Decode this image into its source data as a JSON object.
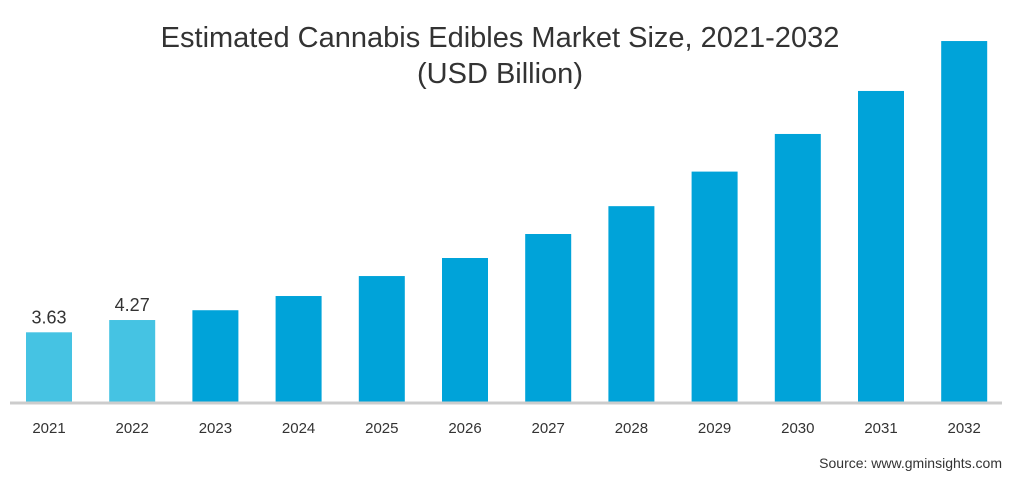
{
  "chart_data": {
    "type": "bar",
    "title": "Estimated Cannabis Edibles Market Size, 2021-2032",
    "subtitle": "(USD Billion)",
    "xlabel": "",
    "ylabel": "",
    "categories": [
      "2021",
      "2022",
      "2023",
      "2024",
      "2025",
      "2026",
      "2027",
      "2028",
      "2029",
      "2030",
      "2031",
      "2032"
    ],
    "values": [
      3.63,
      4.27,
      4.78,
      5.52,
      6.56,
      7.5,
      8.75,
      10.2,
      12.0,
      13.96,
      16.2,
      18.8
    ],
    "data_labels": [
      "3.63",
      "4.27",
      null,
      null,
      null,
      null,
      null,
      null,
      null,
      null,
      null,
      null
    ],
    "ylim": [
      0,
      19
    ],
    "grid": false,
    "colors": {
      "historical": "#45c3e3",
      "forecast": "#00a3d9",
      "axis": "#cccccc"
    },
    "historical_count": 2
  },
  "source": "Source: www.gminsights.com"
}
